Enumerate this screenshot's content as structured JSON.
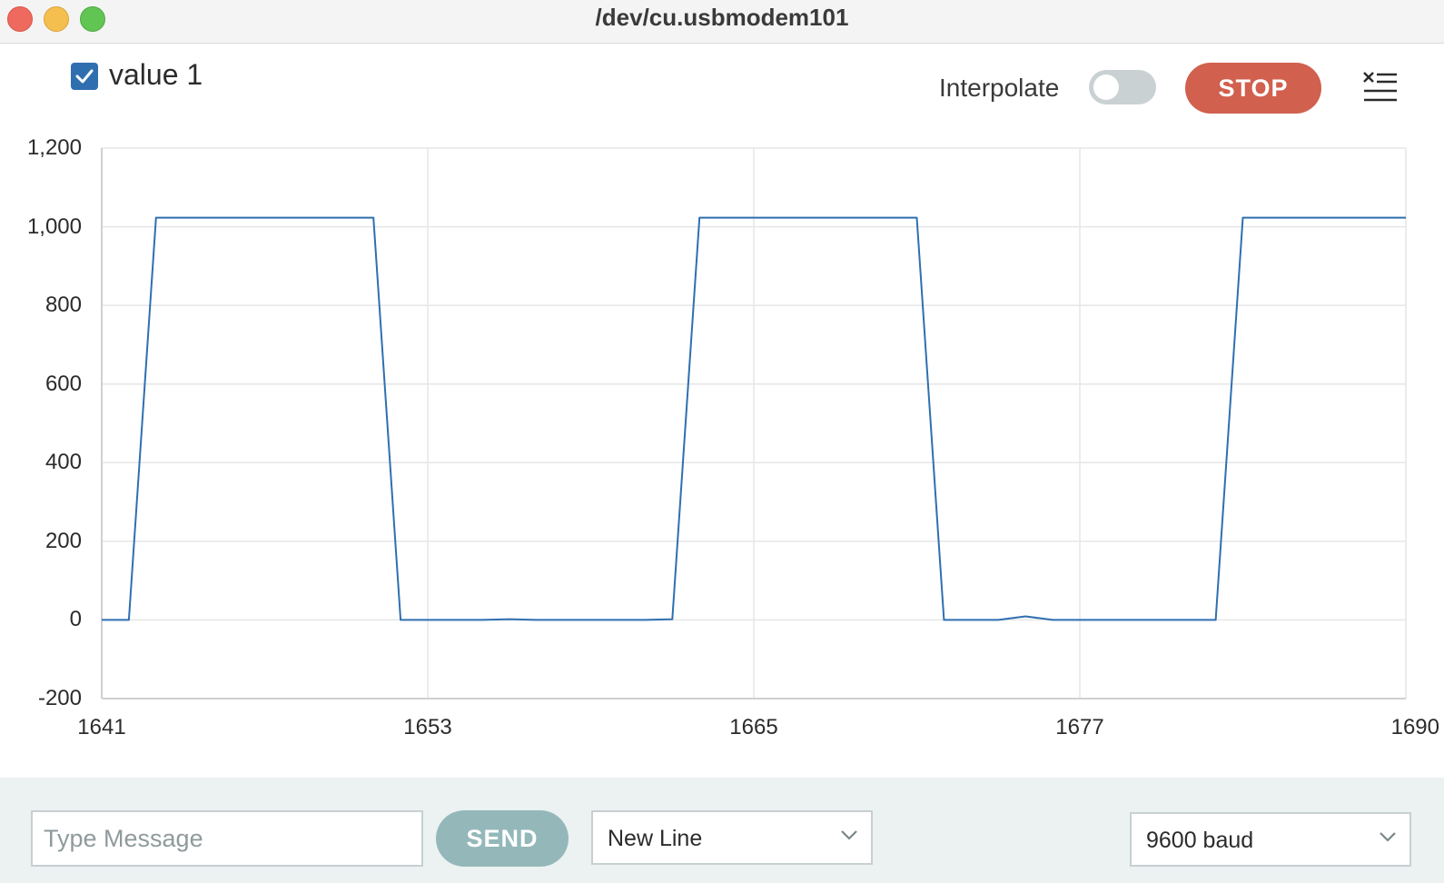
{
  "window": {
    "title": "/dev/cu.usbmodem101"
  },
  "toolbar": {
    "legend_label": "value 1",
    "legend_checked": true,
    "interpolate_label": "Interpolate",
    "interpolate_on": false,
    "stop_label": "STOP",
    "menu_icon": "clear-list-icon"
  },
  "footer": {
    "message_placeholder": "Type Message",
    "send_label": "SEND",
    "line_ending": "New Line",
    "baud_rate": "9600 baud"
  },
  "colors": {
    "series": "#2f6fb0",
    "stop_button": "#d1604f",
    "send_button": "#94b8ba",
    "grid": "#e6e6e6"
  },
  "chart_data": {
    "type": "line",
    "x_ticks": [
      "1641",
      "1653",
      "1665",
      "1677",
      "1690"
    ],
    "y_ticks": [
      "1,200",
      "1,000",
      "800",
      "600",
      "400",
      "200",
      "0",
      "-200"
    ],
    "xlim": [
      1641,
      1689
    ],
    "ylim": [
      -200,
      1200
    ],
    "grid": true,
    "series": [
      {
        "name": "value 1",
        "x": [
          1641,
          1642,
          1643,
          1644,
          1645,
          1646,
          1647,
          1648,
          1649,
          1650,
          1651,
          1652,
          1653,
          1654,
          1655,
          1656,
          1657,
          1658,
          1659,
          1660,
          1661,
          1662,
          1663,
          1664,
          1665,
          1666,
          1667,
          1668,
          1669,
          1670,
          1671,
          1672,
          1673,
          1674,
          1675,
          1676,
          1677,
          1678,
          1679,
          1680,
          1681,
          1682,
          1683,
          1684,
          1685,
          1686,
          1687,
          1688,
          1689
        ],
        "y": [
          0,
          0,
          1023,
          1023,
          1023,
          1023,
          1023,
          1023,
          1023,
          1023,
          1023,
          0,
          0,
          0,
          0,
          2,
          0,
          0,
          0,
          0,
          0,
          2,
          1023,
          1023,
          1023,
          1023,
          1023,
          1023,
          1023,
          1023,
          1023,
          0,
          0,
          0,
          9,
          0,
          0,
          0,
          0,
          0,
          0,
          0,
          1023,
          1023,
          1023,
          1023,
          1023,
          1023,
          1023
        ]
      }
    ]
  }
}
